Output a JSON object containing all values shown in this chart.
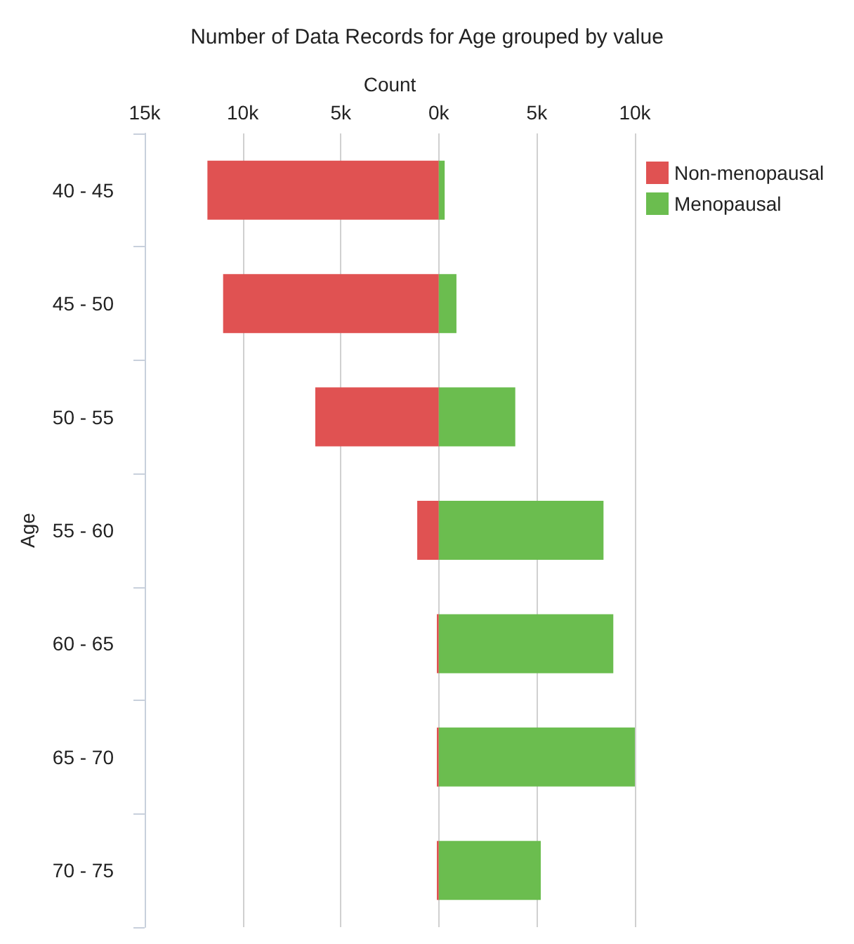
{
  "chart_data": {
    "type": "bar",
    "orientation": "horizontal",
    "title": "Number of Data Records for Age grouped by value",
    "xlabel": "Count",
    "ylabel": "Age",
    "categories": [
      "40 - 45",
      "45 - 50",
      "50 - 55",
      "55 - 60",
      "60 - 65",
      "65 - 70",
      "70 - 75"
    ],
    "series": [
      {
        "name": "Non-menopausal",
        "color": "#e05252",
        "values": [
          -11800,
          -11000,
          -6300,
          -1100,
          -100,
          -100,
          -100
        ]
      },
      {
        "name": "Menopausal",
        "color": "#6bbd4f",
        "values": [
          300,
          900,
          3900,
          8400,
          8900,
          10000,
          5200
        ]
      }
    ],
    "xlim": [
      -15000,
      10000
    ],
    "xticks": [
      {
        "value": -15000,
        "label": "15k"
      },
      {
        "value": -10000,
        "label": "10k"
      },
      {
        "value": -5000,
        "label": "5k"
      },
      {
        "value": 0,
        "label": "0k"
      },
      {
        "value": 5000,
        "label": "5k"
      },
      {
        "value": 10000,
        "label": "10k"
      }
    ],
    "stacked": true,
    "grid": "x",
    "legend": "top right"
  }
}
